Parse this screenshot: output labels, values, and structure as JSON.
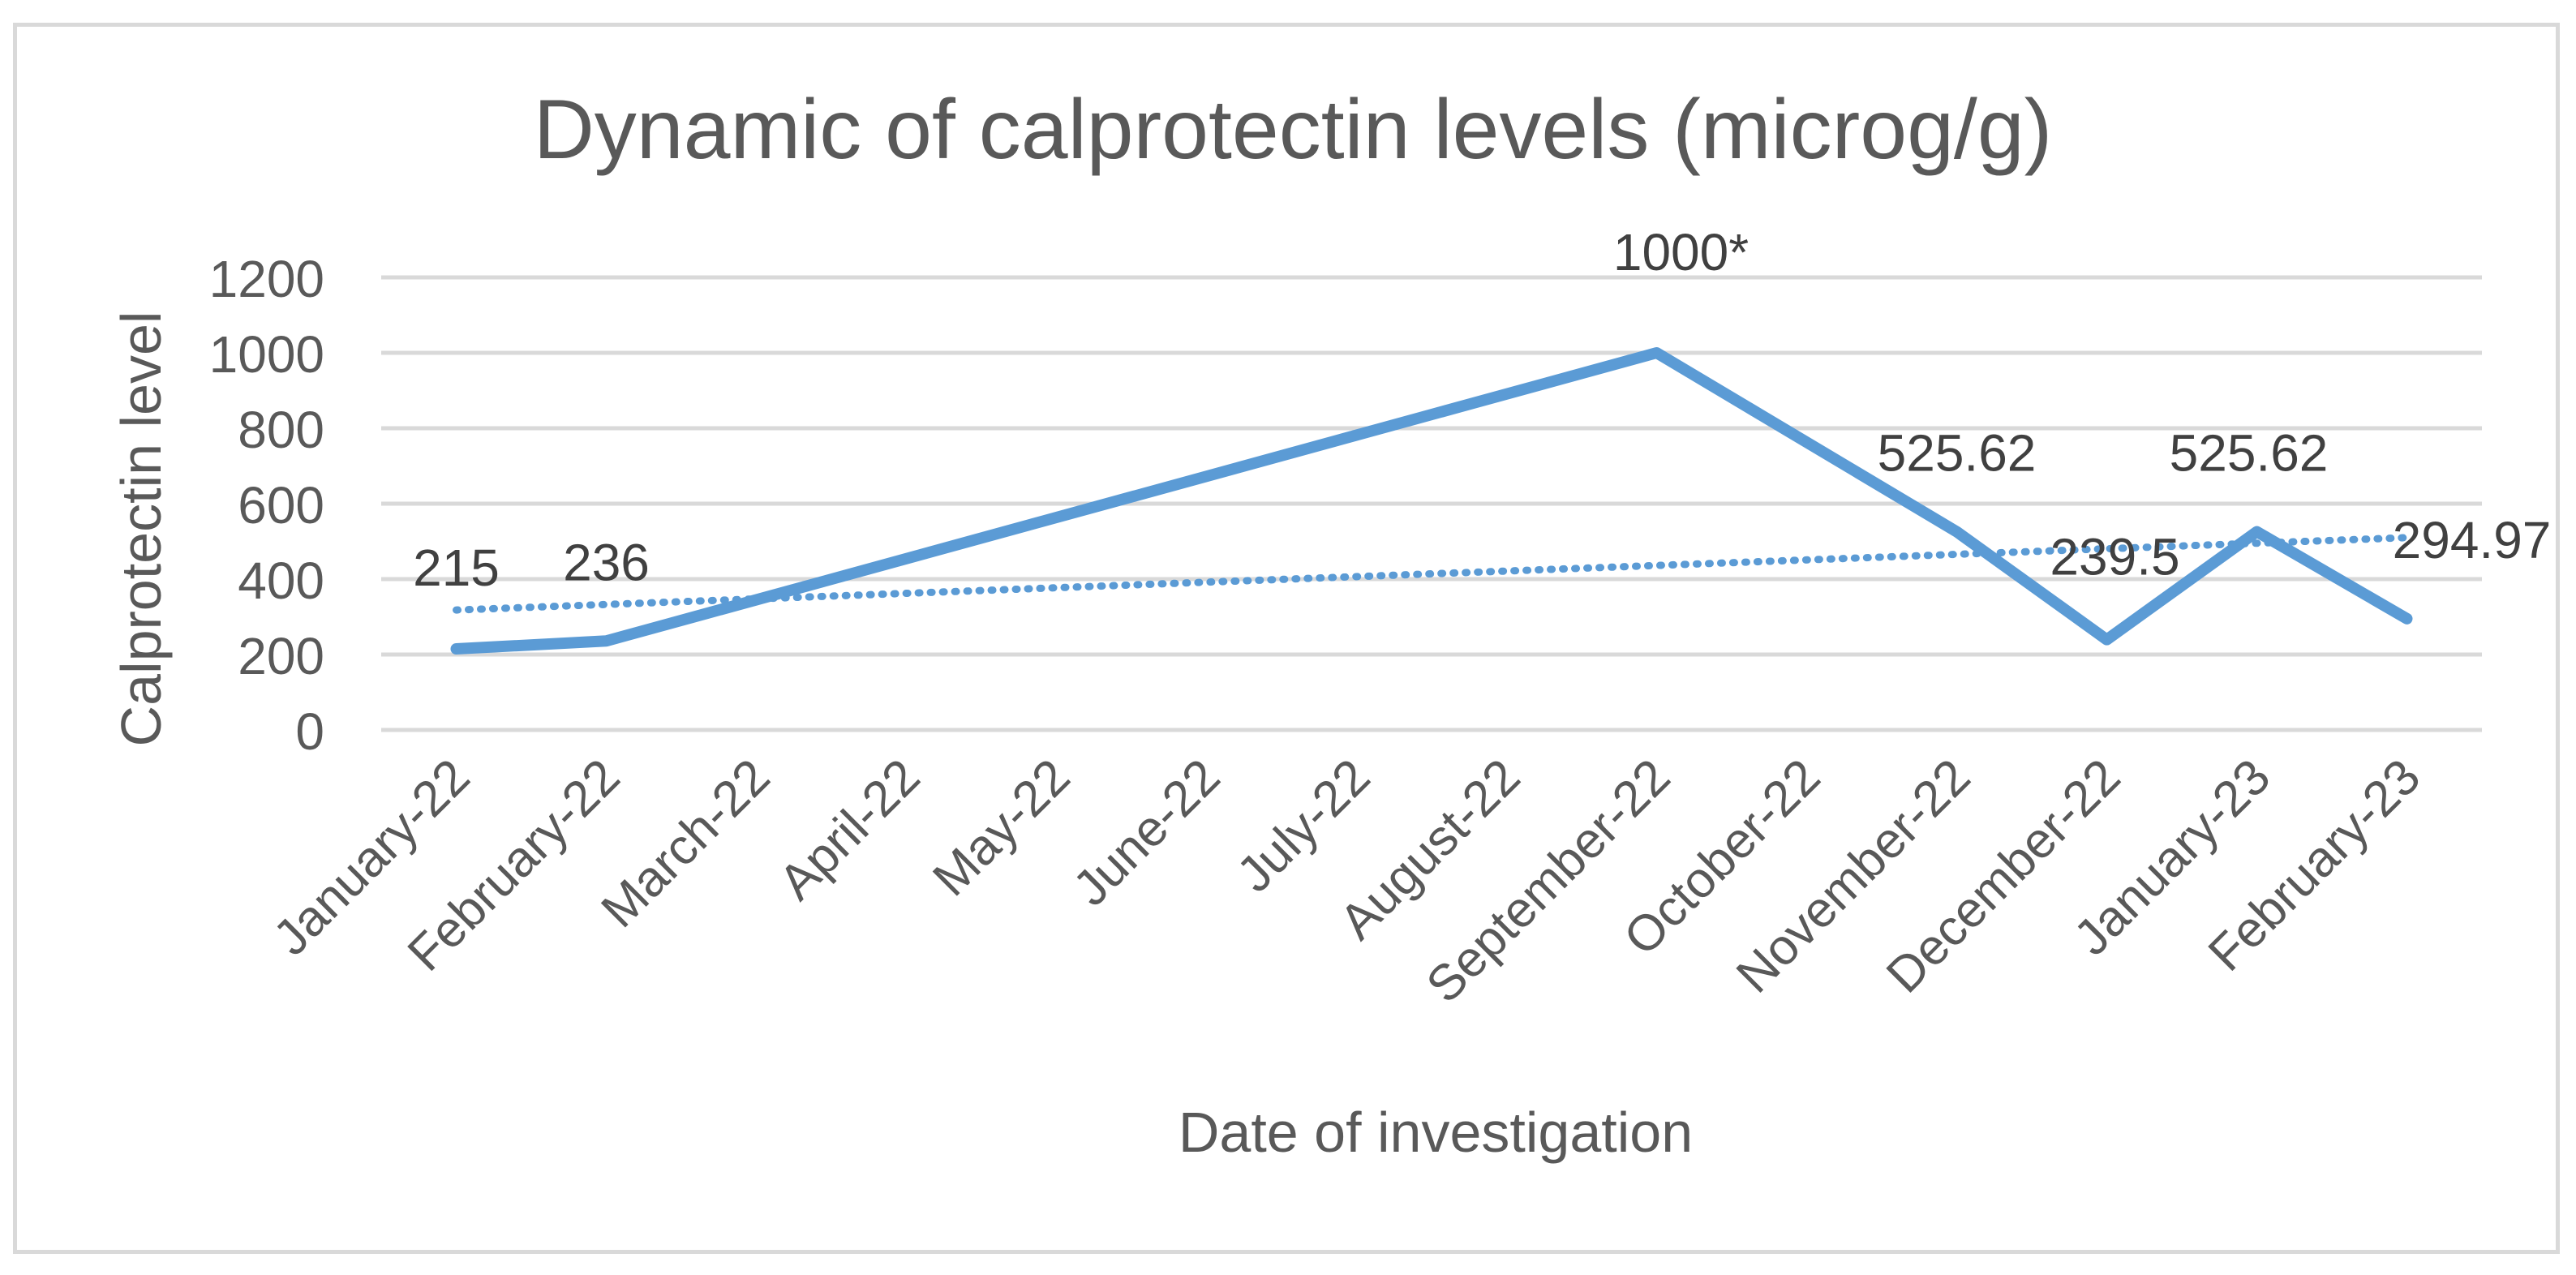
{
  "chart_data": {
    "type": "line",
    "title": "Dynamic of calprotectin levels (microg/g)",
    "xlabel": "Date of investigation",
    "ylabel": "Calprotectin level",
    "ylim": [
      0,
      1200
    ],
    "yticks": [
      0,
      200,
      400,
      600,
      800,
      1000,
      1200
    ],
    "grid": true,
    "categories": [
      "January-22",
      "February-22",
      "March-22",
      "April-22",
      "May-22",
      "June-22",
      "July-22",
      "August-22",
      "September-22",
      "October-22",
      "November-22",
      "December-22",
      "January-23",
      "February-23"
    ],
    "series": [
      {
        "name": "Calprotectin",
        "points": [
          {
            "x": "January-22",
            "y": 215,
            "label": "215"
          },
          {
            "x": "February-22",
            "y": 236,
            "label": "236"
          },
          {
            "x": "September-22",
            "y": 1000,
            "label": "1000*"
          },
          {
            "x": "November-22",
            "y": 525.62,
            "label": "525.62"
          },
          {
            "x": "December-22",
            "y": 239.5,
            "label": "239.5"
          },
          {
            "x": "January-23",
            "y": 525.62,
            "label": "525.62"
          },
          {
            "x": "February-23",
            "y": 294.97,
            "label": "294.97"
          }
        ],
        "color": "#5b9bd5"
      },
      {
        "name": "Linear trend",
        "style": "dotted",
        "y_start": 318,
        "y_end": 510,
        "color": "#5b9bd5"
      }
    ],
    "colors": {
      "line": "#5b9bd5",
      "grid": "#d9d9d9",
      "text": "#595959",
      "label": "#404040"
    }
  }
}
